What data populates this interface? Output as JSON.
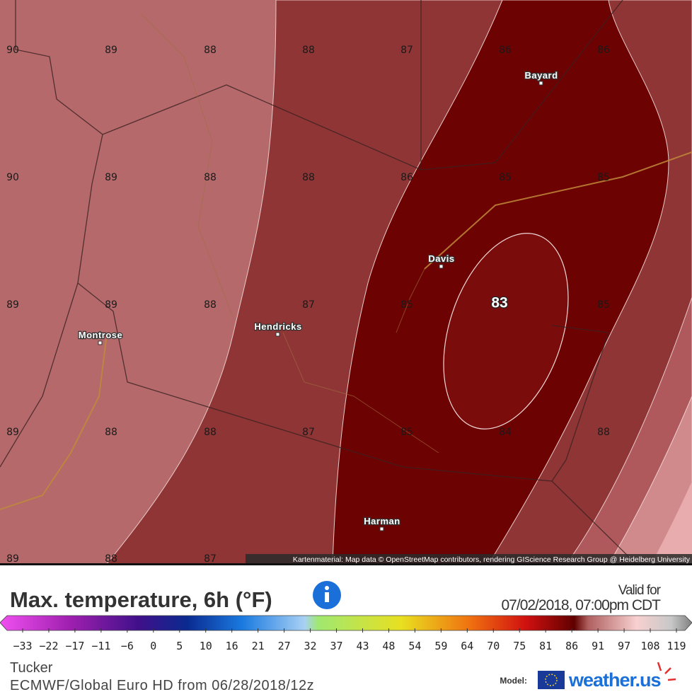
{
  "map": {
    "grid_rows": [
      [
        "90",
        "89",
        "88",
        "88",
        "87",
        "86",
        "86"
      ],
      [
        "90",
        "89",
        "88",
        "88",
        "86",
        "85",
        "85"
      ],
      [
        "89",
        "89",
        "88",
        "87",
        "85",
        "83",
        "85"
      ],
      [
        "89",
        "88",
        "88",
        "87",
        "85",
        "84",
        "88"
      ],
      [
        "89",
        "88",
        "87"
      ]
    ],
    "towns": [
      "Bayard",
      "Davis",
      "Hendricks",
      "Montrose",
      "Harman"
    ],
    "attribution": "Kartenmaterial: Map data © OpenStreetMap contributors, rendering GIScience Research Group @ Heidelberg University"
  },
  "panel": {
    "title": "Max. temperature, 6h (°F)",
    "valid_label": "Valid for",
    "valid_time": "07/02/2018, 07:00pm CDT",
    "scale_labels": [
      "−33",
      "−22",
      "−17",
      "−11",
      "−6",
      "0",
      "5",
      "10",
      "16",
      "21",
      "27",
      "32",
      "37",
      "43",
      "48",
      "54",
      "59",
      "64",
      "70",
      "75",
      "81",
      "86",
      "91",
      "97",
      "108",
      "119"
    ],
    "location": "Tucker",
    "model_run": "ECMWF/Global Euro HD from 06/28/2018/12z",
    "model_label": "Model:",
    "brand": "weather.us"
  }
}
